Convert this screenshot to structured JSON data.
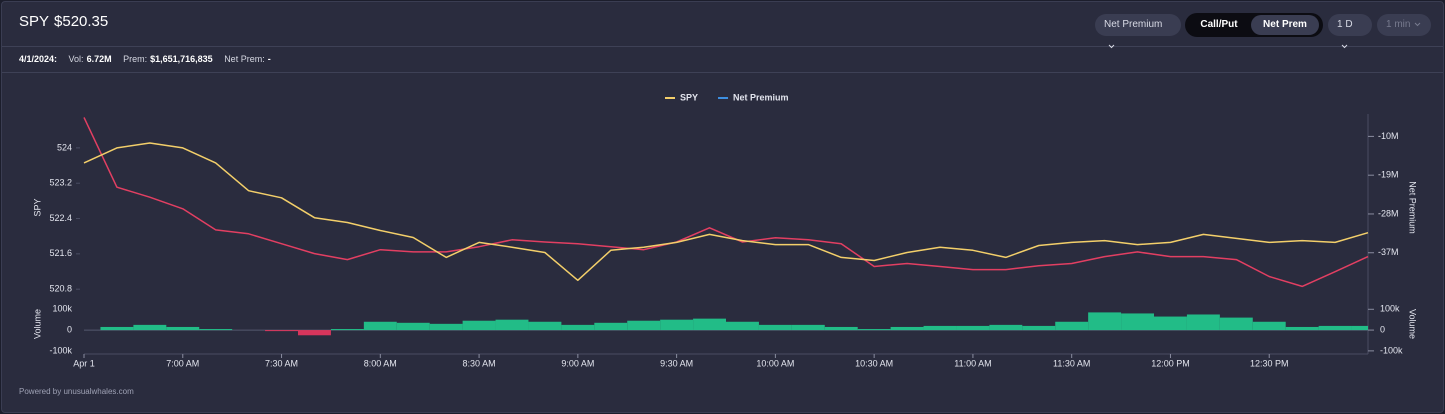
{
  "header": {
    "symbol": "SPY",
    "price": "$520.35",
    "controls": {
      "metric": "Net Premium",
      "toggle": [
        "Call/Put",
        "Net Prem"
      ],
      "period": "1 D",
      "interval": "1 min"
    }
  },
  "info": {
    "date": "4/1/2024:",
    "vol_label": "Vol:",
    "vol": "6.72M",
    "prem_label": "Prem:",
    "prem": "$1,651,716,835",
    "net_label": "Net Prem:",
    "net": "-"
  },
  "chart_data": {
    "type": "line",
    "legend": "top",
    "x": [
      390,
      400,
      410,
      420,
      430,
      440,
      450,
      460,
      470,
      480,
      490,
      500,
      510,
      520,
      530,
      540,
      550,
      560,
      570,
      580,
      590,
      600,
      610,
      620,
      630,
      640,
      650,
      660,
      670,
      680,
      690,
      700,
      710,
      720,
      730,
      740,
      750,
      760,
      770,
      780
    ],
    "xlim": [
      390,
      780
    ],
    "xticks": [
      {
        "value": 390,
        "label": "Apr 1"
      },
      {
        "value": 420,
        "label": "7:00 AM"
      },
      {
        "value": 450,
        "label": "7:30 AM"
      },
      {
        "value": 480,
        "label": "8:00 AM"
      },
      {
        "value": 510,
        "label": "8:30 AM"
      },
      {
        "value": 540,
        "label": "9:00 AM"
      },
      {
        "value": 570,
        "label": "9:30 AM"
      },
      {
        "value": 600,
        "label": "10:00 AM"
      },
      {
        "value": 630,
        "label": "10:30 AM"
      },
      {
        "value": 660,
        "label": "11:00 AM"
      },
      {
        "value": 690,
        "label": "11:30 AM"
      },
      {
        "value": 720,
        "label": "12:00 PM"
      },
      {
        "value": 750,
        "label": "12:30 PM"
      }
    ],
    "ylabel": "SPY",
    "ylim": [
      520.6,
      524.7
    ],
    "yticks": [
      524,
      523.2,
      522.4,
      521.6,
      520.8
    ],
    "y2label": "Net Premium",
    "y2lim": [
      -47500000,
      -5500000
    ],
    "y2ticks": [
      {
        "value": -10000000,
        "label": "-10M"
      },
      {
        "value": -19000000,
        "label": "-19M"
      },
      {
        "value": -28000000,
        "label": "-28M"
      },
      {
        "value": -37000000,
        "label": "-37M"
      }
    ],
    "series": [
      {
        "name": "SPY",
        "color": "#f3cf6a",
        "values": [
          523.66,
          524.0,
          524.11,
          524.0,
          523.66,
          523.03,
          522.87,
          522.42,
          522.31,
          522.13,
          521.97,
          521.52,
          521.86,
          521.75,
          521.63,
          521.0,
          521.68,
          521.75,
          521.86,
          522.04,
          521.9,
          521.81,
          521.81,
          521.52,
          521.45,
          521.63,
          521.75,
          521.68,
          521.52,
          521.79,
          521.86,
          521.9,
          521.81,
          521.86,
          522.04,
          521.95,
          521.86,
          521.9,
          521.86,
          522.08
        ]
      },
      {
        "name": "Net Premium",
        "color": "#e23f62",
        "legend_color": "#3d8fe0",
        "axis": "y2",
        "values": [
          -5600000,
          -21800000,
          -24100000,
          -26800000,
          -31700000,
          -32600000,
          -34900000,
          -37200000,
          -38600000,
          -36300000,
          -36800000,
          -36800000,
          -35600000,
          -34000000,
          -34500000,
          -34900000,
          -35600000,
          -36300000,
          -34500000,
          -31200000,
          -34500000,
          -33500000,
          -34000000,
          -34900000,
          -40200000,
          -39500000,
          -40200000,
          -40900000,
          -40900000,
          -40000000,
          -39500000,
          -37900000,
          -36800000,
          -37900000,
          -37900000,
          -38600000,
          -42500000,
          -44800000,
          -41400000,
          -37900000
        ]
      }
    ],
    "volume": {
      "label": "Volume",
      "color": "#22c48b",
      "negative_color": "#e0365e",
      "ylim": [
        -115000,
        135000
      ],
      "yticks": [
        {
          "value": 100000,
          "label": "100k"
        },
        0,
        {
          "value": -100000,
          "label": "-100k"
        }
      ],
      "values": [
        0,
        15000,
        25000,
        15000,
        5000,
        0,
        -5000,
        -25000,
        5000,
        40000,
        35000,
        30000,
        45000,
        50000,
        40000,
        25000,
        35000,
        45000,
        50000,
        55000,
        40000,
        25000,
        25000,
        15000,
        5000,
        15000,
        20000,
        20000,
        25000,
        20000,
        40000,
        85000,
        80000,
        65000,
        75000,
        60000,
        40000,
        15000,
        20000,
        20000
      ]
    }
  },
  "footer": "Powered by unusualwhales.com"
}
